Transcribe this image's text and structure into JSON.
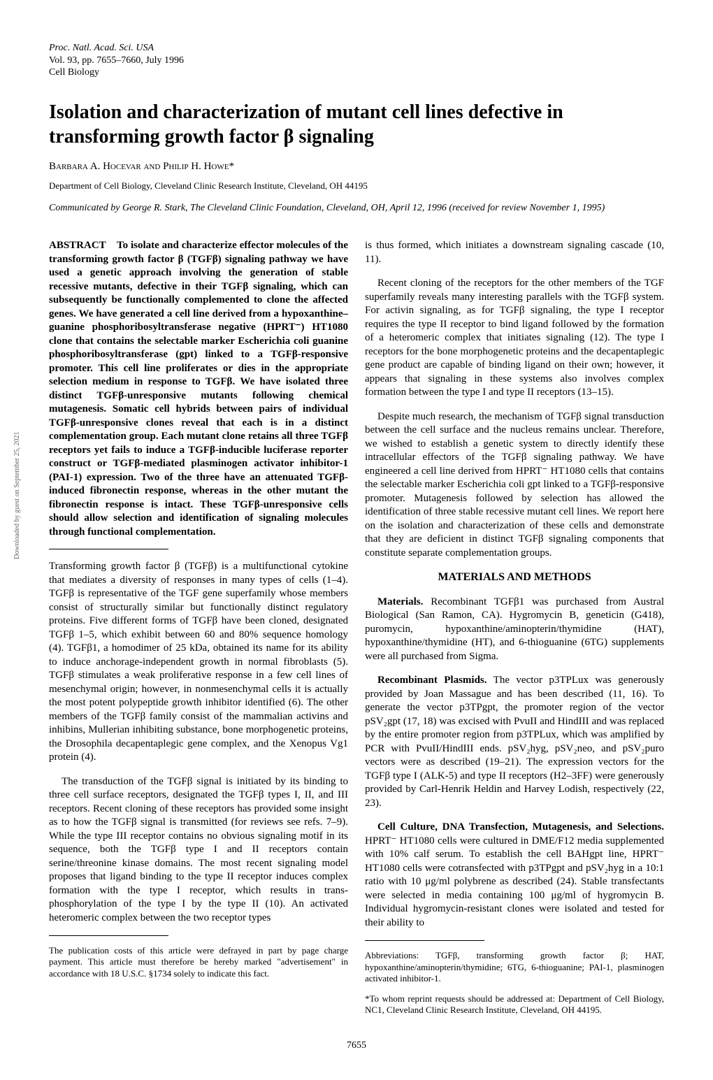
{
  "journal": {
    "proc": "Proc. Natl. Acad. Sci. USA",
    "volpages": "Vol. 93, pp. 7655–7660, July 1996",
    "section": "Cell Biology"
  },
  "title": "Isolation and characterization of mutant cell lines defective in transforming growth factor β signaling",
  "authors": "Barbara A. Hocevar and Philip H. Howe*",
  "affiliation": "Department of Cell Biology, Cleveland Clinic Research Institute, Cleveland, OH 44195",
  "communicated": "Communicated by George R. Stark, The Cleveland Clinic Foundation, Cleveland, OH, April 12, 1996 (received for review November 1, 1995)",
  "abstract_label": "ABSTRACT",
  "abstract": "To isolate and characterize effector molecules of the transforming growth factor β (TGFβ) signaling pathway we have used a genetic approach involving the generation of stable recessive mutants, defective in their TGFβ signaling, which can subsequently be functionally complemented to clone the affected genes. We have generated a cell line derived from a hypoxanthine–guanine phosphoribosyltransferase negative (HPRT⁻) HT1080 clone that contains the selectable marker Escherichia coli guanine phosphoribosyltransferase (gpt) linked to a TGFβ-responsive promoter. This cell line proliferates or dies in the appropriate selection medium in response to TGFβ. We have isolated three distinct TGFβ-unresponsive mutants following chemical mutagenesis. Somatic cell hybrids between pairs of individual TGFβ-unresponsive clones reveal that each is in a distinct complementation group. Each mutant clone retains all three TGFβ receptors yet fails to induce a TGFβ-inducible luciferase reporter construct or TGFβ-mediated plasminogen activator inhibitor-1 (PAI-1) expression. Two of the three have an attenuated TGFβ-induced fibronectin response, whereas in the other mutant the fibronectin response is intact. These TGFβ-unresponsive cells should allow selection and identification of signaling molecules through functional complementation.",
  "left_para1": "Transforming growth factor β (TGFβ) is a multifunctional cytokine that mediates a diversity of responses in many types of cells (1–4). TGFβ is representative of the TGF gene superfamily whose members consist of structurally similar but functionally distinct regulatory proteins. Five different forms of TGFβ have been cloned, designated TGFβ 1–5, which exhibit between 60 and 80% sequence homology (4). TGFβ1, a homodimer of 25 kDa, obtained its name for its ability to induce anchorage-independent growth in normal fibroblasts (5). TGFβ stimulates a weak proliferative response in a few cell lines of mesenchymal origin; however, in nonmesenchymal cells it is actually the most potent polypeptide growth inhibitor identified (6). The other members of the TGFβ family consist of the mammalian activins and inhibins, Mullerian inhibiting substance, bone morphogenetic proteins, the Drosophila decapentaplegic gene complex, and the Xenopus Vg1 protein (4).",
  "left_para2": "The transduction of the TGFβ signal is initiated by its binding to three cell surface receptors, designated the TGFβ types I, II, and III receptors. Recent cloning of these receptors has provided some insight as to how the TGFβ signal is transmitted (for reviews see refs. 7–9). While the type III receptor contains no obvious signaling motif in its sequence, both the TGFβ type I and II receptors contain serine/threonine kinase domains. The most recent signaling model proposes that ligand binding to the type II receptor induces complex formation with the type I receptor, which results in trans-phosphorylation of the type I by the type II (10). An activated heteromeric complex between the two receptor types",
  "left_footnote": "The publication costs of this article were defrayed in part by page charge payment. This article must therefore be hereby marked \"advertisement\" in accordance with 18 U.S.C. §1734 solely to indicate this fact.",
  "right_para1": "is thus formed, which initiates a downstream signaling cascade (10, 11).",
  "right_para2": "Recent cloning of the receptors for the other members of the TGF superfamily reveals many interesting parallels with the TGFβ system. For activin signaling, as for TGFβ signaling, the type I receptor requires the type II receptor to bind ligand followed by the formation of a heteromeric complex that initiates signaling (12). The type I receptors for the bone morphogenetic proteins and the decapentaplegic gene product are capable of binding ligand on their own; however, it appears that signaling in these systems also involves complex formation between the type I and type II receptors (13–15).",
  "right_para3": "Despite much research, the mechanism of TGFβ signal transduction between the cell surface and the nucleus remains unclear. Therefore, we wished to establish a genetic system to directly identify these intracellular effectors of the TGFβ signaling pathway. We have engineered a cell line derived from HPRT⁻ HT1080 cells that contains the selectable marker Escherichia coli gpt linked to a TGFβ-responsive promoter. Mutagenesis followed by selection has allowed the identification of three stable recessive mutant cell lines. We report here on the isolation and characterization of these cells and demonstrate that they are deficient in distinct TGFβ signaling components that constitute separate complementation groups.",
  "materials_heading": "MATERIALS AND METHODS",
  "materials_label": "Materials.",
  "materials_text": " Recombinant TGFβ1 was purchased from Austral Biological (San Ramon, CA). Hygromycin B, geneticin (G418), puromycin, hypoxanthine/aminopterin/thymidine (HAT), hypoxanthine/thymidine (HT), and 6-thioguanine (6TG) supplements were all purchased from Sigma.",
  "plasmids_label": "Recombinant Plasmids.",
  "plasmids_text": " The vector p3TPLux was generously provided by Joan Massague and has been described (11, 16). To generate the vector p3TPgpt, the promoter region of the vector pSV₂gpt (17, 18) was excised with PvuII and HindIII and was replaced by the entire promoter region from p3TPLux, which was amplified by PCR with PvuII/HindIII ends. pSV₂hyg, pSV₂neo, and pSV₂puro vectors were as described (19–21). The expression vectors for the TGFβ type I (ALK-5) and type II receptors (H2–3FF) were generously provided by Carl-Henrik Heldin and Harvey Lodish, respectively (22, 23).",
  "culture_label": "Cell Culture, DNA Transfection, Mutagenesis, and Selections.",
  "culture_text": " HPRT⁻ HT1080 cells were cultured in DME/F12 media supplemented with 10% calf serum. To establish the cell BAHgpt line, HPRT⁻ HT1080 cells were cotransfected with p3TPgpt and pSV₂hyg in a 10:1 ratio with 10 μg/ml polybrene as described (24). Stable transfectants were selected in media containing 100 μg/ml of hygromycin B. Individual hygromycin-resistant clones were isolated and tested for their ability to",
  "right_footnote1": "Abbreviations: TGFβ, transforming growth factor β; HAT, hypoxanthine/aminopterin/thymidine; 6TG, 6-thioguanine; PAI-1, plasminogen activated inhibitor-1.",
  "right_footnote2": "*To whom reprint requests should be addressed at: Department of Cell Biology, NC1, Cleveland Clinic Research Institute, Cleveland, OH 44195.",
  "page_number": "7655",
  "sidebar": "Downloaded by guest on September 25, 2021"
}
